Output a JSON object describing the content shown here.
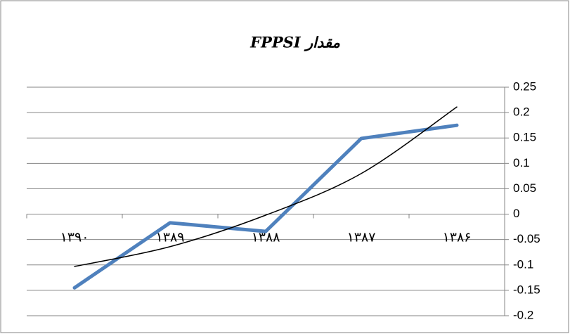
{
  "chart_data": {
    "type": "line",
    "title": "مقدار FPPSI",
    "categories": [
      "۱۳۹۰",
      "۱۳۸۹",
      "۱۳۸۸",
      "۱۳۸۷",
      "۱۳۸۶"
    ],
    "series": [
      {
        "color": "#4f81bd",
        "values": [
          -0.145,
          -0.017,
          -0.034,
          0.149,
          0.175
        ]
      },
      {
        "color": "#000000",
        "values": [
          -0.103,
          -0.064,
          -0.002,
          0.08,
          0.211
        ]
      }
    ],
    "ylim": [
      -0.2,
      0.25
    ],
    "yticks": [
      -0.2,
      -0.15,
      -0.1,
      -0.05,
      0,
      0.05,
      0.1,
      0.15,
      0.2,
      0.25
    ],
    "grid": true
  }
}
